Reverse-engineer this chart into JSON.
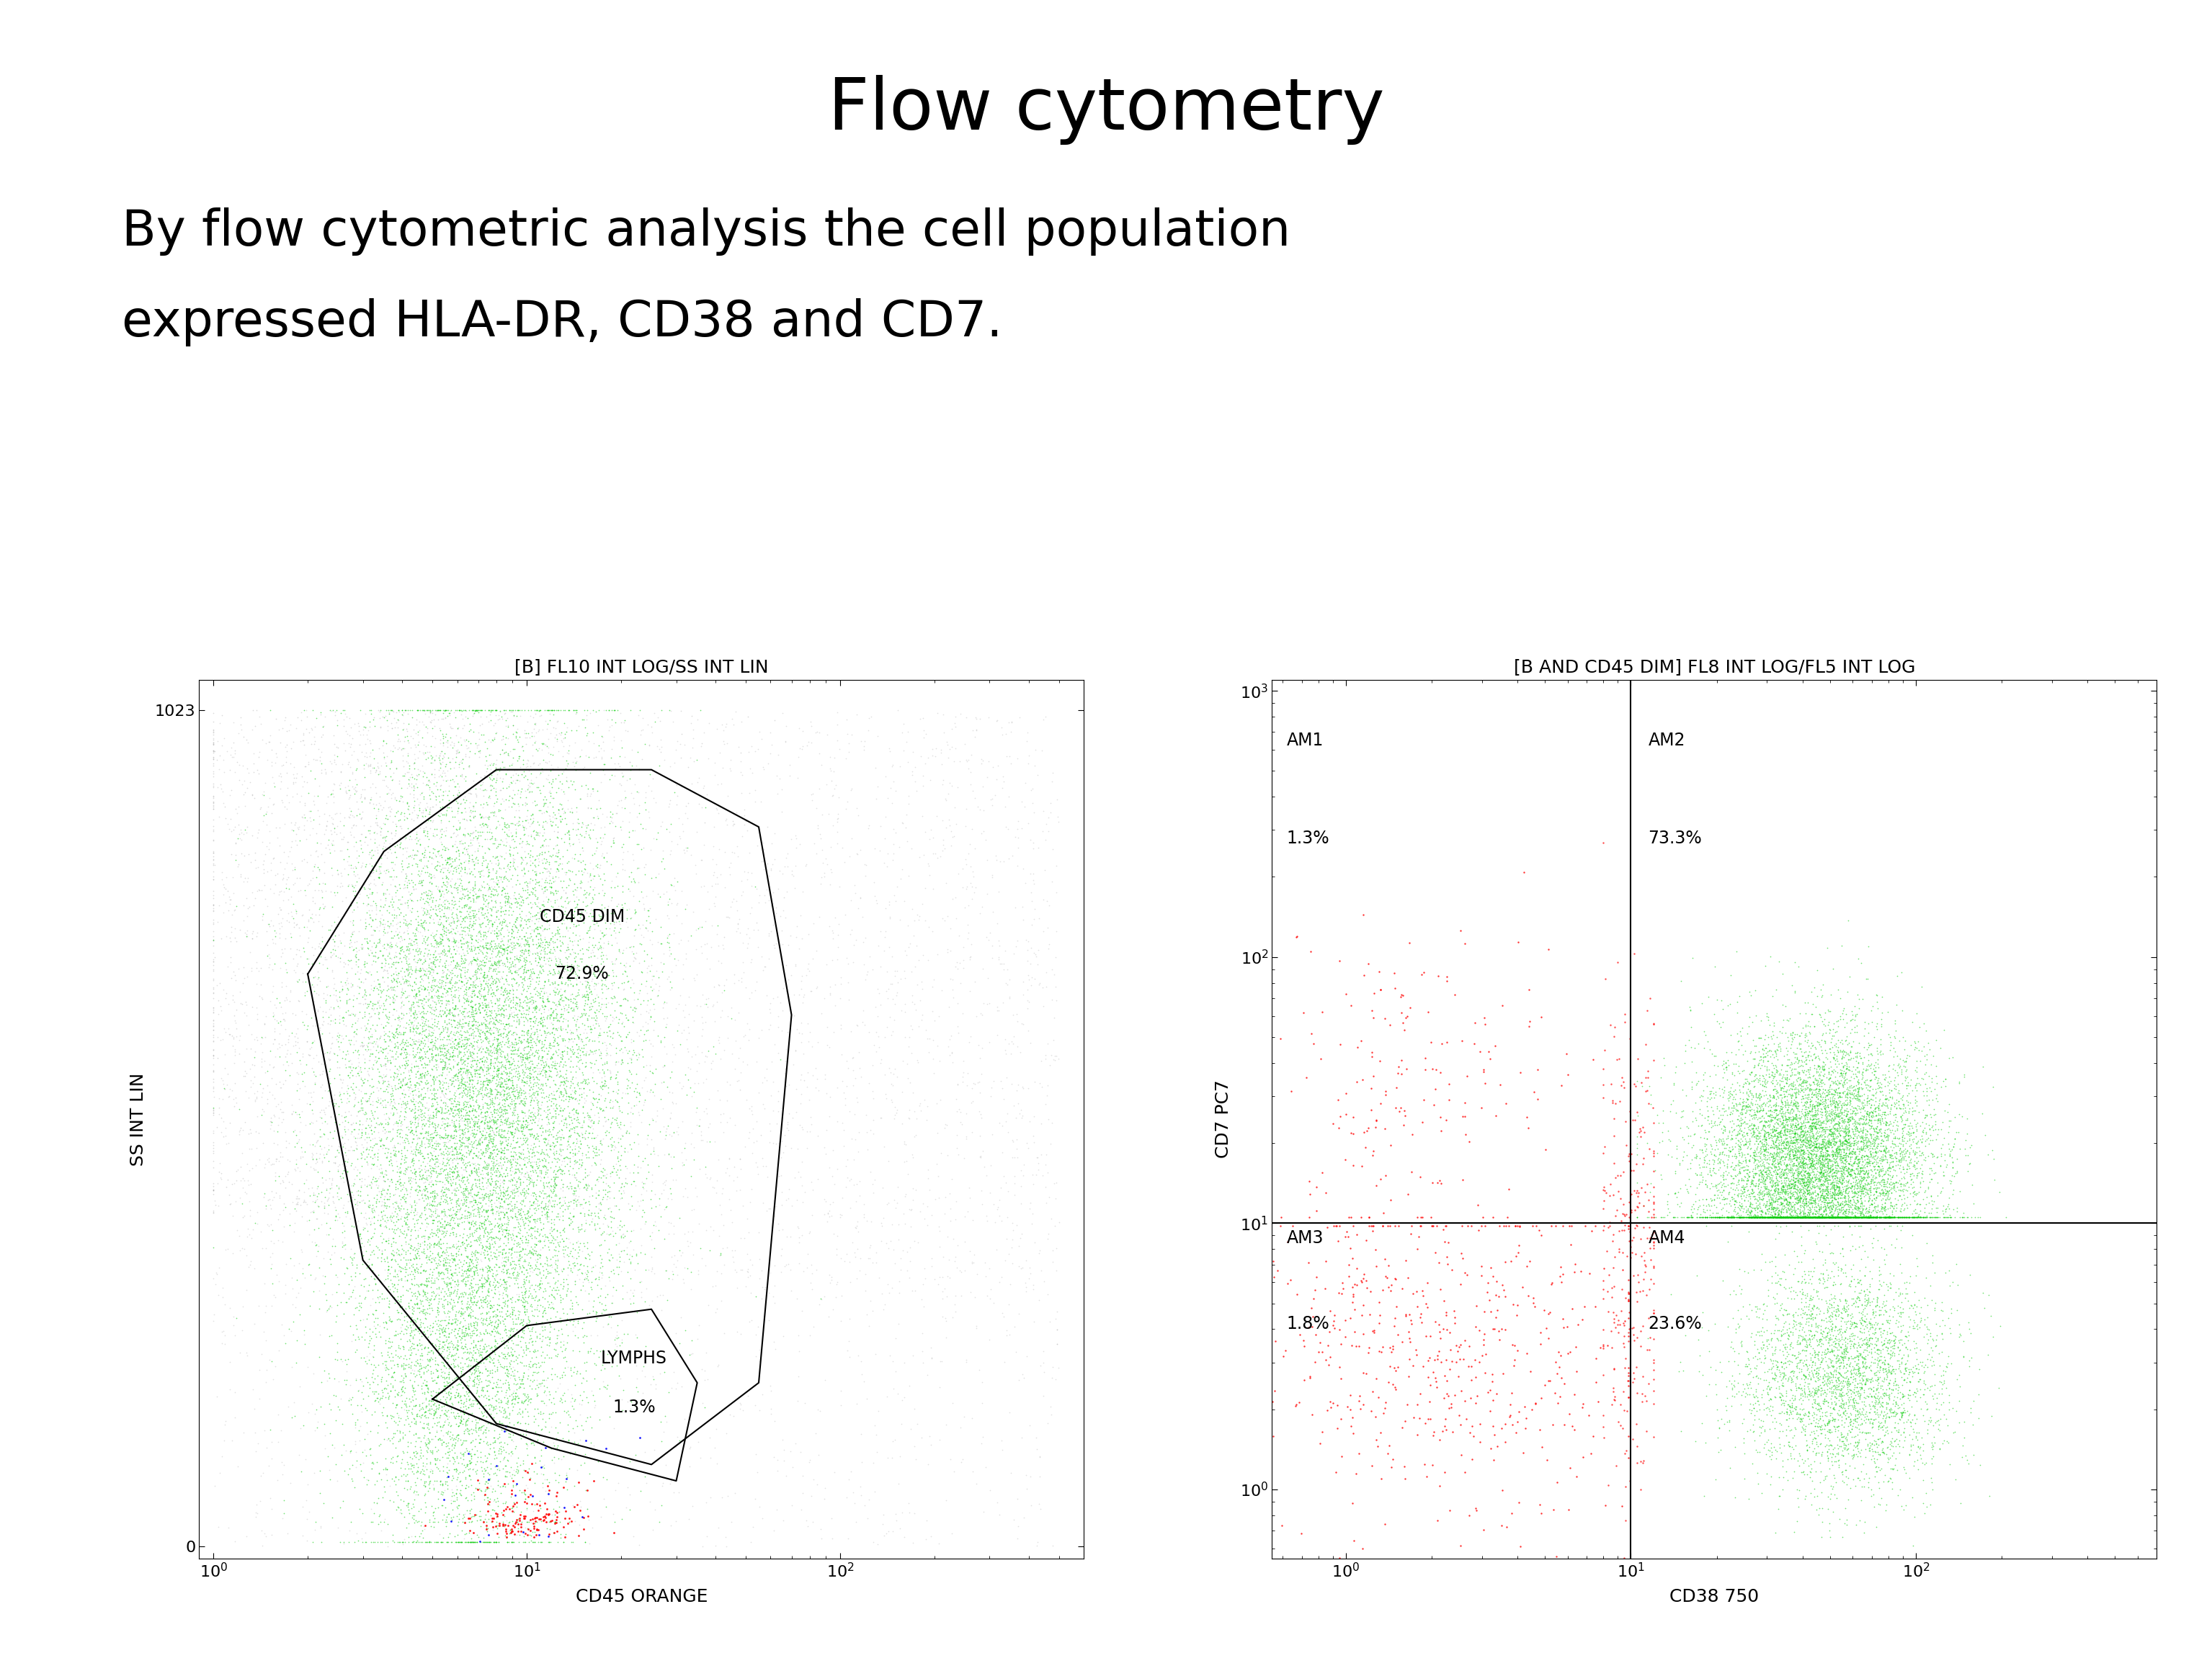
{
  "title": "Flow cytometry",
  "subtitle_line1": "By flow cytometric analysis the cell population",
  "subtitle_line2": "expressed HLA-DR, CD38 and CD7.",
  "plot1_title": "[B] FL10 INT LOG/SS INT LIN",
  "plot1_xlabel": "CD45 ORANGE",
  "plot1_ylabel": "SS INT LIN",
  "plot1_gate1_label_line1": "CD45 DIM",
  "plot1_gate1_label_line2": "72.9%",
  "plot1_gate2_label_line1": "LYMPHS",
  "plot1_gate2_label_line2": "1.3%",
  "plot2_title": "[B AND CD45 DIM] FL8 INT LOG/FL5 INT LOG",
  "plot2_xlabel": "CD38 750",
  "plot2_ylabel": "CD7 PC7",
  "plot2_am1_line1": "AM1",
  "plot2_am1_line2": "1.3%",
  "plot2_am2_line1": "AM2",
  "plot2_am2_line2": "73.3%",
  "plot2_am3_line1": "AM3",
  "plot2_am3_line2": "1.8%",
  "plot2_am4_line1": "AM4",
  "plot2_am4_line2": "23.6%",
  "bg_color": "#ffffff",
  "title_fontsize": 72,
  "subtitle_fontsize": 50,
  "plot_title_fontsize": 18,
  "axis_label_fontsize": 18,
  "tick_fontsize": 16,
  "gate_label_fontsize": 17,
  "quadrant_label_fontsize": 17
}
